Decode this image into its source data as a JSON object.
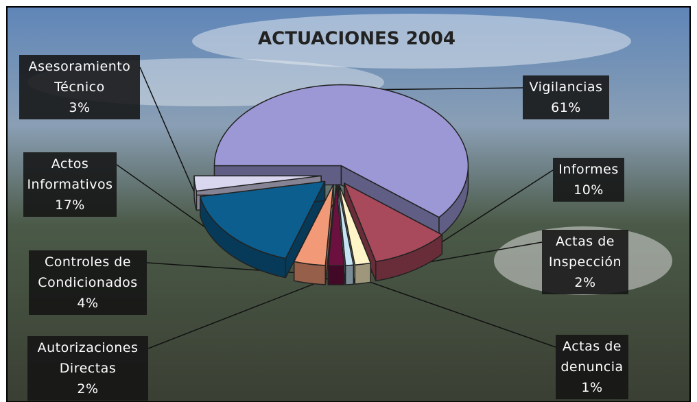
{
  "chart_data": {
    "type": "pie",
    "title": "ACTUACIONES 2004",
    "categories": [
      "Vigilancias",
      "Informes",
      "Actas de Inspección",
      "Actas de denuncia",
      "Autorizaciones Directas",
      "Controles de Condicionados",
      "Actos Informativos",
      "Asesoramiento Técnico"
    ],
    "values": [
      61,
      10,
      2,
      1,
      2,
      4,
      17,
      3
    ],
    "value_labels": [
      "61%",
      "10%",
      "2%",
      "1%",
      "2%",
      "4%",
      "17%",
      "3%"
    ],
    "colors": [
      "#9c98d6",
      "#a84a5c",
      "#fff4c8",
      "#c6e4f4",
      "#6c1040",
      "#f29a78",
      "#0b5e8e",
      "#d9d6f0"
    ]
  }
}
